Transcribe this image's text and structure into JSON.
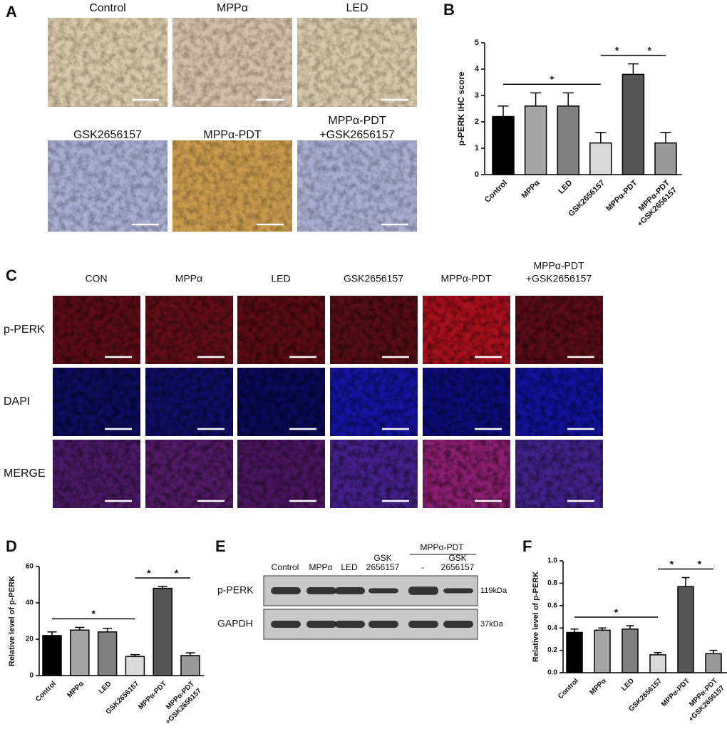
{
  "panel_labels": [
    "A",
    "B",
    "C",
    "D",
    "E",
    "F"
  ],
  "ihc": {
    "captions": [
      "Control",
      "MPPα",
      "LED",
      "GSK2656157",
      "MPPα-PDT",
      [
        "MPPα-PDT",
        "+GSK2656157"
      ]
    ]
  },
  "immunofluorescence": {
    "columns": [
      "CON",
      "MPPα",
      "LED",
      "GSK2656157",
      "MPPα-PDT",
      [
        "MPPα-PDT",
        "+GSK2656157"
      ]
    ],
    "rows": [
      "p-PERK",
      "DAPI",
      "MERGE"
    ]
  },
  "western_blot": {
    "group": "MPPα-PDT",
    "lanes": [
      "Control",
      "MPPα",
      "LED",
      [
        "GSK",
        "2656157"
      ],
      "-",
      [
        "GSK",
        "2656157"
      ]
    ],
    "rows": [
      {
        "name": "p-PERK",
        "size": "119kDa"
      },
      {
        "name": "GAPDH",
        "size": "37kDa"
      }
    ]
  },
  "chart_data": [
    {
      "type": "bar",
      "ylabel": "p-PERK IHC score",
      "categories": [
        "Control",
        "MPPα",
        "LED",
        "GSK2656157",
        "MPPα-PDT",
        [
          "MPPα-PDT",
          "+GSK2656157"
        ]
      ],
      "values": [
        2.2,
        2.6,
        2.6,
        1.2,
        3.8,
        1.2
      ],
      "errors": [
        0.4,
        0.5,
        0.5,
        0.4,
        0.4,
        0.4
      ],
      "colors": [
        "#000000",
        "#a6a6a6",
        "#808080",
        "#d9d9d9",
        "#555555",
        "#999999"
      ],
      "ylim": [
        0,
        5
      ],
      "yticks": [
        0,
        1,
        2,
        3,
        4,
        5
      ],
      "significance": [
        {
          "between": [
            "Control",
            "GSK2656157"
          ],
          "label": "*"
        },
        {
          "between": [
            "GSK2656157",
            "MPPα-PDT"
          ],
          "label": "*"
        },
        {
          "between": [
            "MPPα-PDT",
            [
              "MPPα-PDT",
              "+GSK2656157"
            ]
          ],
          "label": "*"
        }
      ]
    },
    {
      "type": "bar",
      "ylabel": "Relative level of p-PERK",
      "categories": [
        "Control",
        "MPPα",
        "LED",
        "GSK2656157",
        "MPPα-PDT",
        [
          "MPPα-PDT",
          "+GSK2656157"
        ]
      ],
      "values": [
        22,
        25,
        24,
        10.5,
        48,
        11
      ],
      "errors": [
        2,
        1.5,
        2,
        1,
        1,
        1.5
      ],
      "colors": [
        "#000000",
        "#a6a6a6",
        "#808080",
        "#d9d9d9",
        "#555555",
        "#999999"
      ],
      "ylim": [
        0,
        60
      ],
      "yticks": [
        0,
        20,
        40,
        60
      ],
      "significance": [
        {
          "between": [
            "Control",
            "GSK2656157"
          ],
          "label": "*"
        },
        {
          "between": [
            "GSK2656157",
            "MPPα-PDT"
          ],
          "label": "*"
        },
        {
          "between": [
            "MPPα-PDT",
            [
              "MPPα-PDT",
              "+GSK2656157"
            ]
          ],
          "label": "*"
        }
      ]
    },
    {
      "type": "bar",
      "ylabel": "Relative level of p-PERK",
      "categories": [
        "Control",
        "MPPα",
        "LED",
        "GSK2656157",
        "MPPα-PDT",
        [
          "MPPα-PDT",
          "+GSK2656157"
        ]
      ],
      "values": [
        0.36,
        0.38,
        0.39,
        0.16,
        0.77,
        0.17
      ],
      "errors": [
        0.03,
        0.02,
        0.03,
        0.02,
        0.08,
        0.03
      ],
      "colors": [
        "#000000",
        "#a6a6a6",
        "#808080",
        "#d9d9d9",
        "#555555",
        "#999999"
      ],
      "ylim": [
        0,
        1
      ],
      "yticks": [
        {
          "value": 0,
          "label": "0.0"
        },
        0.2,
        0.4,
        0.6,
        0.8,
        {
          "value": 1,
          "label": "1.0"
        }
      ],
      "significance": [
        {
          "between": [
            "Control",
            "GSK2656157"
          ],
          "label": "*"
        },
        {
          "between": [
            "GSK2656157",
            "MPPα-PDT"
          ],
          "label": "*"
        },
        {
          "between": [
            "MPPα-PDT",
            [
              "MPPα-PDT",
              "+GSK2656157"
            ]
          ],
          "label": "*"
        }
      ]
    }
  ]
}
